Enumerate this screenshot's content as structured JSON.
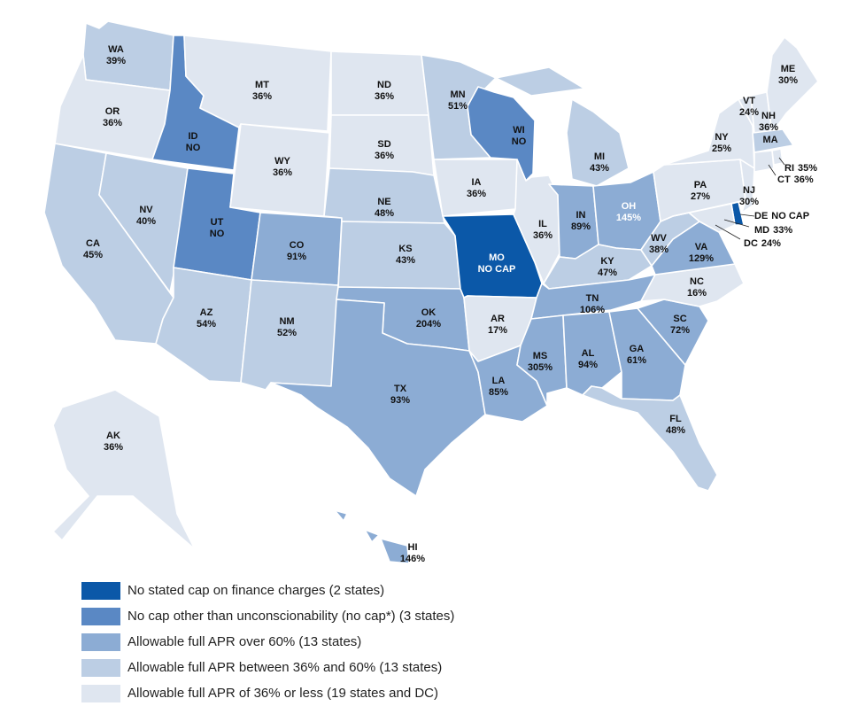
{
  "colors": {
    "no_stated_cap": "#0b58a8",
    "no_cap_unconscionability": "#5a88c4",
    "over_60": "#8cacd4",
    "between_36_60": "#bccee4",
    "under_36": "#dfe6f0",
    "border": "#ffffff"
  },
  "states": [
    {
      "id": "WA",
      "abbr": "WA",
      "value": "39%",
      "category": "between_36_60"
    },
    {
      "id": "OR",
      "abbr": "OR",
      "value": "36%",
      "category": "under_36"
    },
    {
      "id": "CA",
      "abbr": "CA",
      "value": "45%",
      "category": "between_36_60"
    },
    {
      "id": "ID",
      "abbr": "ID",
      "value": "NO",
      "category": "no_cap_unconscionability"
    },
    {
      "id": "NV",
      "abbr": "NV",
      "value": "40%",
      "category": "between_36_60"
    },
    {
      "id": "MT",
      "abbr": "MT",
      "value": "36%",
      "category": "under_36"
    },
    {
      "id": "WY",
      "abbr": "WY",
      "value": "36%",
      "category": "under_36"
    },
    {
      "id": "UT",
      "abbr": "UT",
      "value": "NO",
      "category": "no_cap_unconscionability"
    },
    {
      "id": "AZ",
      "abbr": "AZ",
      "value": "54%",
      "category": "between_36_60"
    },
    {
      "id": "CO",
      "abbr": "CO",
      "value": "91%",
      "category": "over_60"
    },
    {
      "id": "NM",
      "abbr": "NM",
      "value": "52%",
      "category": "between_36_60"
    },
    {
      "id": "ND",
      "abbr": "ND",
      "value": "36%",
      "category": "under_36"
    },
    {
      "id": "SD",
      "abbr": "SD",
      "value": "36%",
      "category": "under_36"
    },
    {
      "id": "NE",
      "abbr": "NE",
      "value": "48%",
      "category": "between_36_60"
    },
    {
      "id": "KS",
      "abbr": "KS",
      "value": "43%",
      "category": "between_36_60"
    },
    {
      "id": "OK",
      "abbr": "OK",
      "value": "204%",
      "category": "over_60"
    },
    {
      "id": "TX",
      "abbr": "TX",
      "value": "93%",
      "category": "over_60"
    },
    {
      "id": "MN",
      "abbr": "MN",
      "value": "51%",
      "category": "between_36_60"
    },
    {
      "id": "IA",
      "abbr": "IA",
      "value": "36%",
      "category": "under_36"
    },
    {
      "id": "MO",
      "abbr": "MO",
      "value": "NO CAP",
      "category": "no_stated_cap"
    },
    {
      "id": "AR",
      "abbr": "AR",
      "value": "17%",
      "category": "under_36"
    },
    {
      "id": "LA",
      "abbr": "LA",
      "value": "85%",
      "category": "over_60"
    },
    {
      "id": "WI",
      "abbr": "WI",
      "value": "NO",
      "category": "no_cap_unconscionability"
    },
    {
      "id": "IL",
      "abbr": "IL",
      "value": "36%",
      "category": "under_36"
    },
    {
      "id": "MI",
      "abbr": "MI",
      "value": "43%",
      "category": "between_36_60"
    },
    {
      "id": "IN",
      "abbr": "IN",
      "value": "89%",
      "category": "over_60"
    },
    {
      "id": "OH",
      "abbr": "OH",
      "value": "145%",
      "category": "over_60"
    },
    {
      "id": "KY",
      "abbr": "KY",
      "value": "47%",
      "category": "between_36_60"
    },
    {
      "id": "TN",
      "abbr": "TN",
      "value": "106%",
      "category": "over_60"
    },
    {
      "id": "MS",
      "abbr": "MS",
      "value": "305%",
      "category": "over_60"
    },
    {
      "id": "AL",
      "abbr": "AL",
      "value": "94%",
      "category": "over_60"
    },
    {
      "id": "GA",
      "abbr": "GA",
      "value": "61%",
      "category": "over_60"
    },
    {
      "id": "FL",
      "abbr": "FL",
      "value": "48%",
      "category": "between_36_60"
    },
    {
      "id": "SC",
      "abbr": "SC",
      "value": "72%",
      "category": "over_60"
    },
    {
      "id": "NC",
      "abbr": "NC",
      "value": "16%",
      "category": "under_36"
    },
    {
      "id": "VA",
      "abbr": "VA",
      "value": "129%",
      "category": "over_60"
    },
    {
      "id": "WV",
      "abbr": "WV",
      "value": "38%",
      "category": "between_36_60"
    },
    {
      "id": "PA",
      "abbr": "PA",
      "value": "27%",
      "category": "under_36"
    },
    {
      "id": "NY",
      "abbr": "NY",
      "value": "25%",
      "category": "under_36"
    },
    {
      "id": "NJ",
      "abbr": "NJ",
      "value": "30%",
      "category": "under_36"
    },
    {
      "id": "DE",
      "abbr": "DE",
      "value": "NO CAP",
      "category": "no_stated_cap"
    },
    {
      "id": "MD",
      "abbr": "MD",
      "value": "33%",
      "category": "under_36"
    },
    {
      "id": "DC",
      "abbr": "DC",
      "value": "24%",
      "category": "under_36"
    },
    {
      "id": "VT",
      "abbr": "VT",
      "value": "24%",
      "category": "under_36"
    },
    {
      "id": "NH",
      "abbr": "NH",
      "value": "36%",
      "category": "under_36"
    },
    {
      "id": "ME",
      "abbr": "ME",
      "value": "30%",
      "category": "under_36"
    },
    {
      "id": "MA",
      "abbr": "MA",
      "value": "",
      "category": "between_36_60"
    },
    {
      "id": "RI",
      "abbr": "RI",
      "value": "35%",
      "category": "under_36"
    },
    {
      "id": "CT",
      "abbr": "CT",
      "value": "36%",
      "category": "under_36"
    },
    {
      "id": "AK",
      "abbr": "AK",
      "value": "36%",
      "category": "under_36"
    },
    {
      "id": "HI",
      "abbr": "HI",
      "value": "146%",
      "category": "over_60"
    }
  ],
  "legend": [
    {
      "category": "no_stated_cap",
      "label": "No stated cap on finance charges (2 states)"
    },
    {
      "category": "no_cap_unconscionability",
      "label": "No cap other than unconscionability (no cap*) (3 states)"
    },
    {
      "category": "over_60",
      "label": "Allowable full APR over 60% (13 states)"
    },
    {
      "category": "between_36_60",
      "label": "Allowable full APR between 36% and 60% (13 states)"
    },
    {
      "category": "under_36",
      "label": "Allowable full APR of 36% or less (19 states and DC)"
    }
  ]
}
